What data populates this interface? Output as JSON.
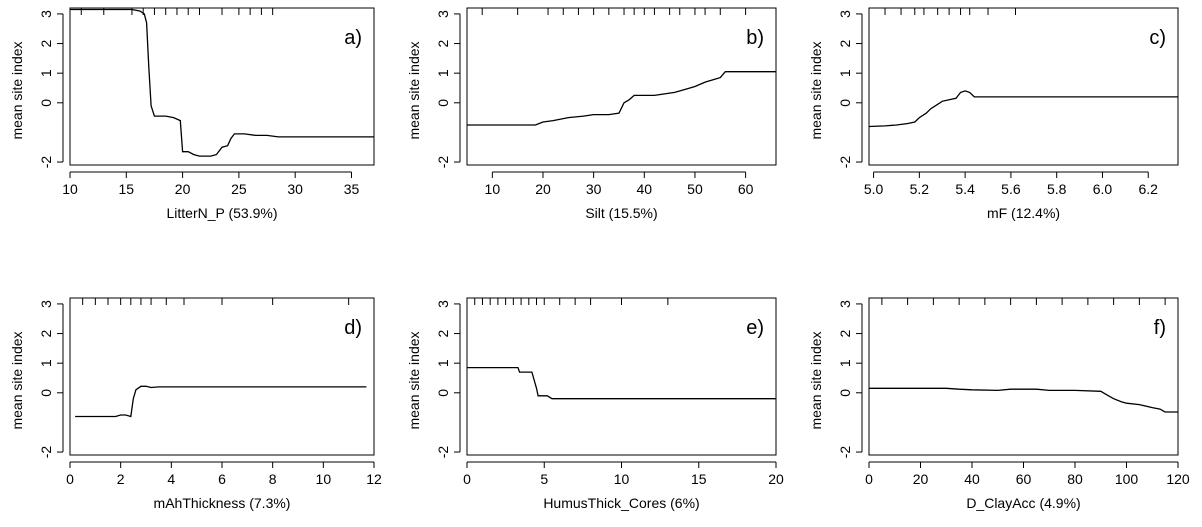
{
  "chart_data": [
    {
      "type": "line",
      "panel_label": "a)",
      "xlabel": "LitterN_P  (53.9%)",
      "ylabel": "mean site index",
      "xlim": [
        10,
        37
      ],
      "ylim": [
        -2.1,
        3.2
      ],
      "x_ticks": [
        10,
        15,
        20,
        25,
        30,
        35
      ],
      "y_ticks": [
        -2,
        0,
        1,
        2,
        3
      ],
      "rug": [
        11,
        13,
        15.5,
        16.5,
        17.5,
        18.5,
        19.5,
        20.5,
        21.5,
        23.5,
        25,
        26,
        27,
        28
      ],
      "series": [
        {
          "x": [
            10,
            12,
            14,
            15.5,
            16.2,
            16.6,
            16.8,
            17.0,
            17.2,
            17.5,
            17.8,
            18.5,
            19.2,
            19.8,
            20.0,
            20.5,
            21.0,
            21.5,
            22.5,
            23.0,
            23.5,
            24.0,
            24.3,
            24.6,
            25.5,
            26.5,
            27.5,
            28.5,
            30,
            32,
            34,
            37
          ],
          "y": [
            3.15,
            3.15,
            3.15,
            3.15,
            3.1,
            3.0,
            2.7,
            1.2,
            -0.1,
            -0.45,
            -0.45,
            -0.45,
            -0.5,
            -0.6,
            -1.65,
            -1.65,
            -1.75,
            -1.8,
            -1.8,
            -1.75,
            -1.5,
            -1.45,
            -1.2,
            -1.05,
            -1.05,
            -1.1,
            -1.1,
            -1.15,
            -1.15,
            -1.15,
            -1.15,
            -1.15
          ]
        }
      ]
    },
    {
      "type": "line",
      "panel_label": "b)",
      "xlabel": "Silt  (15.5%)",
      "ylabel": "mean site index",
      "xlim": [
        5,
        66
      ],
      "ylim": [
        -2.1,
        3.2
      ],
      "x_ticks": [
        10,
        20,
        30,
        40,
        50,
        60
      ],
      "y_ticks": [
        -2,
        0,
        1,
        2,
        3
      ],
      "rug": [
        8,
        15,
        21,
        24,
        27,
        30,
        33,
        36,
        38,
        40,
        42,
        45,
        47,
        50,
        52,
        55,
        60
      ],
      "series": [
        {
          "x": [
            5,
            10,
            15,
            18.5,
            20,
            22,
            25,
            28,
            30,
            33,
            35,
            36,
            37,
            38,
            40,
            42,
            44,
            46,
            48,
            50,
            52,
            54,
            55,
            56,
            60,
            66
          ],
          "y": [
            -0.75,
            -0.75,
            -0.75,
            -0.75,
            -0.65,
            -0.6,
            -0.5,
            -0.45,
            -0.4,
            -0.4,
            -0.35,
            0.0,
            0.1,
            0.25,
            0.25,
            0.25,
            0.3,
            0.35,
            0.45,
            0.55,
            0.7,
            0.8,
            0.85,
            1.05,
            1.05,
            1.05
          ]
        }
      ]
    },
    {
      "type": "line",
      "panel_label": "c)",
      "xlabel": "mF  (12.4%)",
      "ylabel": "mean site index",
      "xlim": [
        4.98,
        6.33
      ],
      "ylim": [
        -2.1,
        3.2
      ],
      "x_ticks": [
        5.0,
        5.2,
        5.4,
        5.6,
        5.8,
        6.0,
        6.2
      ],
      "x_tick_labels": [
        "5.0",
        "5.2",
        "5.4",
        "5.6",
        "5.8",
        "6.0",
        "6.2"
      ],
      "y_ticks": [
        -2,
        0,
        1,
        2,
        3
      ],
      "rug": [
        5.05,
        5.12,
        5.18,
        5.22,
        5.28,
        5.33,
        5.38,
        5.42,
        5.5,
        5.62
      ],
      "series": [
        {
          "x": [
            4.98,
            5.05,
            5.1,
            5.15,
            5.18,
            5.2,
            5.23,
            5.25,
            5.28,
            5.3,
            5.33,
            5.36,
            5.38,
            5.4,
            5.42,
            5.44,
            5.46,
            5.6,
            5.8,
            6.0,
            6.33
          ],
          "y": [
            -0.8,
            -0.78,
            -0.75,
            -0.7,
            -0.65,
            -0.5,
            -0.35,
            -0.2,
            -0.05,
            0.05,
            0.1,
            0.15,
            0.35,
            0.4,
            0.35,
            0.2,
            0.2,
            0.2,
            0.2,
            0.2,
            0.2
          ]
        }
      ]
    },
    {
      "type": "line",
      "panel_label": "d)",
      "xlabel": "mAhThickness  (7.3%)",
      "ylabel": "mean site index",
      "xlim": [
        0,
        12
      ],
      "ylim": [
        -2.1,
        3.2
      ],
      "x_ticks": [
        0,
        2,
        4,
        6,
        8,
        10,
        12
      ],
      "y_ticks": [
        -2,
        0,
        1,
        2,
        3
      ],
      "rug": [
        0.5,
        1,
        1.5,
        2,
        2.4,
        2.8,
        3.2,
        3.8,
        4.5,
        6,
        8,
        11
      ],
      "series": [
        {
          "x": [
            0.2,
            1.0,
            1.8,
            2.0,
            2.2,
            2.4,
            2.5,
            2.6,
            2.8,
            3.0,
            3.2,
            3.5,
            4.0,
            6.0,
            8.0,
            10.0,
            11.7
          ],
          "y": [
            -0.8,
            -0.8,
            -0.8,
            -0.75,
            -0.75,
            -0.8,
            -0.2,
            0.1,
            0.22,
            0.22,
            0.18,
            0.2,
            0.2,
            0.2,
            0.2,
            0.2,
            0.2
          ]
        }
      ]
    },
    {
      "type": "line",
      "panel_label": "e)",
      "xlabel": "HumusThick_Cores  (6%)",
      "ylabel": "mean site index",
      "xlim": [
        0,
        20
      ],
      "ylim": [
        -2.1,
        3.2
      ],
      "x_ticks": [
        0,
        5,
        10,
        15,
        20
      ],
      "y_ticks": [
        -2,
        0,
        1,
        2,
        3
      ],
      "rug": [
        0.5,
        1,
        1.5,
        2,
        2.5,
        3,
        3.5,
        4,
        4.5,
        5,
        6,
        7,
        8,
        10,
        13
      ],
      "series": [
        {
          "x": [
            0,
            1,
            2,
            3.3,
            3.4,
            4.2,
            4.5,
            4.6,
            5.2,
            5.5,
            6,
            10,
            15,
            20
          ],
          "y": [
            0.85,
            0.85,
            0.85,
            0.85,
            0.7,
            0.7,
            0.15,
            -0.1,
            -0.1,
            -0.2,
            -0.2,
            -0.2,
            -0.2,
            -0.2
          ]
        }
      ]
    },
    {
      "type": "line",
      "panel_label": "f)",
      "xlabel": "D_ClayAcc  (4.9%)",
      "ylabel": "mean site index",
      "xlim": [
        0,
        120
      ],
      "ylim": [
        -2.1,
        3.2
      ],
      "x_ticks": [
        0,
        20,
        40,
        60,
        80,
        100,
        120
      ],
      "y_ticks": [
        -2,
        0,
        1,
        2,
        3
      ],
      "rug": [
        5,
        15,
        25,
        35,
        45,
        55,
        65,
        75,
        85,
        95,
        105,
        115
      ],
      "series": [
        {
          "x": [
            0,
            10,
            20,
            30,
            35,
            40,
            50,
            55,
            65,
            70,
            80,
            90,
            92,
            95,
            98,
            100,
            105,
            110,
            113,
            115,
            120
          ],
          "y": [
            0.15,
            0.15,
            0.15,
            0.15,
            0.12,
            0.1,
            0.08,
            0.12,
            0.12,
            0.08,
            0.08,
            0.05,
            -0.05,
            -0.2,
            -0.3,
            -0.35,
            -0.4,
            -0.5,
            -0.55,
            -0.65,
            -0.65
          ]
        }
      ]
    }
  ]
}
